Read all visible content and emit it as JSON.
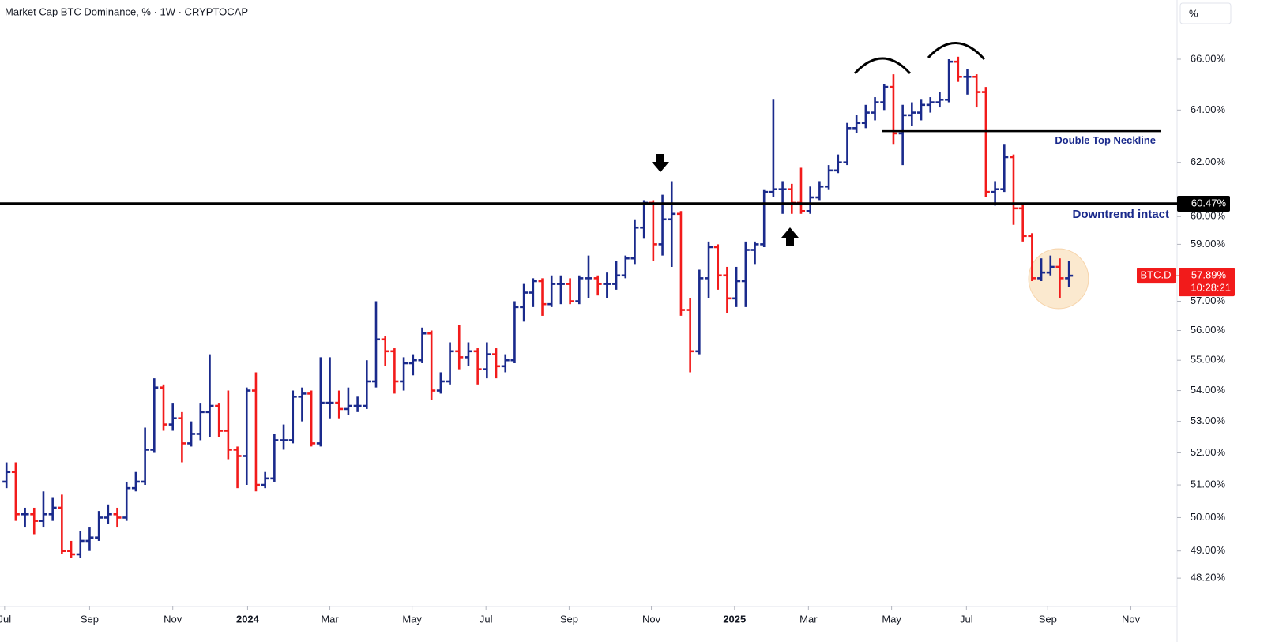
{
  "chart_data": {
    "type": "ohlc",
    "title": "Market Cap BTC Dominance, % · 1W · CRYPTOCAP",
    "axis_unit": "%",
    "log": true,
    "up_color": "#1a2a8c",
    "down_color": "#f21b1b",
    "xlim": [
      -0.7,
      126.7
    ],
    "xticks": [
      {
        "value": -0.2,
        "label": "Jul"
      },
      {
        "value": 9.0,
        "label": "Sep"
      },
      {
        "value": 18.0,
        "label": "Nov"
      },
      {
        "value": 26.1,
        "label": "2024"
      },
      {
        "value": 35.0,
        "label": "Mar"
      },
      {
        "value": 43.9,
        "label": "May"
      },
      {
        "value": 51.9,
        "label": "Jul"
      },
      {
        "value": 60.9,
        "label": "Sep"
      },
      {
        "value": 69.8,
        "label": "Nov"
      },
      {
        "value": 78.8,
        "label": "2025"
      },
      {
        "value": 86.8,
        "label": "Mar"
      },
      {
        "value": 95.8,
        "label": "May"
      },
      {
        "value": 103.9,
        "label": "Jul"
      },
      {
        "value": 112.7,
        "label": "Sep"
      },
      {
        "value": 121.7,
        "label": "Nov"
      }
    ],
    "ylim": [
      47.38,
      68.41
    ],
    "yticks": [
      {
        "value": 66,
        "label": "66.00%"
      },
      {
        "value": 64,
        "label": "64.00%"
      },
      {
        "value": 62,
        "label": "62.00%"
      },
      {
        "value": 60,
        "label": "60.00%"
      },
      {
        "value": 59,
        "label": "59.00%"
      },
      {
        "value": 57,
        "label": "57.00%"
      },
      {
        "value": 56,
        "label": "56.00%"
      },
      {
        "value": 55,
        "label": "55.00%"
      },
      {
        "value": 54,
        "label": "54.00%"
      },
      {
        "value": 53,
        "label": "53.00%"
      },
      {
        "value": 52,
        "label": "52.00%"
      },
      {
        "value": 51,
        "label": "51.00%"
      },
      {
        "value": 50,
        "label": "50.00%"
      },
      {
        "value": 49,
        "label": "49.00%"
      },
      {
        "value": 48.2,
        "label": "48.20%"
      }
    ],
    "open": [
      51.1,
      51.4,
      50.1,
      50.1,
      49.9,
      50.1,
      50.3,
      49.0,
      48.9,
      49.3,
      49.4,
      50.0,
      50.1,
      50.0,
      50.9,
      51.1,
      52.1,
      54.1,
      52.9,
      53.1,
      52.3,
      52.6,
      53.3,
      53.5,
      52.7,
      52.1,
      51.9,
      54.0,
      51.0,
      51.2,
      52.4,
      52.4,
      53.8,
      53.9,
      52.3,
      53.6,
      53.6,
      53.4,
      53.5,
      53.5,
      54.3,
      55.7,
      55.3,
      54.3,
      54.9,
      55.0,
      55.9,
      54.0,
      54.3,
      55.3,
      55.1,
      55.3,
      54.7,
      55.2,
      54.8,
      55.0,
      56.8,
      57.3,
      57.7,
      56.9,
      57.6,
      57.6,
      57.0,
      57.8,
      57.8,
      57.6,
      57.6,
      57.9,
      58.5,
      59.6,
      60.5,
      59.0,
      59.9,
      60.1,
      56.7,
      55.3,
      57.8,
      58.9,
      57.9,
      57.1,
      57.7,
      58.8,
      59.0,
      60.9,
      61.0,
      61.0,
      60.5,
      60.2,
      60.7,
      61.1,
      61.7,
      62.0,
      63.3,
      63.5,
      63.9,
      64.3,
      64.9,
      63.1,
      63.8,
      63.9,
      64.2,
      64.3,
      64.4,
      65.9,
      65.3,
      65.3,
      64.7,
      60.9,
      61.0,
      62.2,
      60.3,
      59.3,
      57.8,
      58.0,
      58.2,
      57.8
    ],
    "high": [
      51.7,
      51.7,
      50.3,
      50.3,
      50.8,
      50.6,
      50.7,
      49.3,
      49.6,
      49.7,
      50.2,
      50.4,
      50.3,
      51.1,
      51.4,
      52.8,
      54.4,
      54.2,
      53.6,
      53.3,
      53.0,
      53.6,
      55.2,
      53.6,
      54.0,
      52.2,
      54.1,
      54.6,
      51.4,
      52.6,
      52.9,
      54.0,
      54.1,
      54.0,
      55.1,
      55.1,
      54.0,
      54.1,
      53.8,
      55.0,
      57.0,
      55.8,
      55.4,
      55.1,
      55.2,
      56.1,
      56.0,
      54.6,
      55.6,
      56.2,
      55.6,
      55.4,
      55.6,
      55.4,
      55.2,
      57.0,
      57.6,
      57.8,
      57.8,
      57.9,
      57.9,
      57.8,
      57.9,
      58.6,
      57.9,
      58.0,
      58.4,
      58.6,
      59.9,
      60.6,
      60.6,
      60.8,
      61.3,
      60.2,
      57.1,
      58.1,
      59.1,
      59.0,
      58.2,
      58.2,
      59.1,
      59.1,
      61.0,
      64.4,
      61.3,
      61.2,
      61.8,
      61.1,
      61.3,
      61.9,
      62.3,
      63.5,
      63.8,
      64.2,
      64.5,
      65.0,
      65.4,
      64.2,
      64.3,
      64.4,
      64.5,
      64.7,
      66.0,
      66.1,
      65.6,
      65.4,
      64.9,
      61.3,
      62.7,
      62.3,
      60.5,
      59.4,
      58.5,
      58.6,
      58.5,
      58.4
    ],
    "low": [
      50.9,
      49.9,
      49.7,
      49.5,
      49.7,
      49.9,
      48.9,
      48.8,
      48.8,
      49.0,
      49.3,
      49.8,
      49.7,
      49.9,
      50.8,
      51.0,
      52.0,
      52.7,
      52.7,
      51.7,
      52.2,
      52.4,
      52.5,
      52.5,
      51.8,
      50.9,
      51.0,
      50.8,
      50.9,
      51.1,
      52.1,
      52.3,
      53.0,
      52.2,
      52.2,
      53.1,
      53.1,
      53.2,
      53.3,
      53.4,
      54.1,
      54.8,
      53.9,
      54.0,
      54.5,
      54.9,
      53.7,
      53.9,
      54.2,
      54.7,
      54.8,
      54.2,
      54.4,
      54.4,
      54.6,
      54.9,
      56.3,
      56.8,
      56.5,
      56.8,
      56.9,
      56.9,
      56.9,
      57.1,
      57.2,
      57.1,
      57.4,
      57.8,
      58.3,
      59.2,
      58.4,
      58.6,
      58.2,
      56.5,
      54.6,
      55.2,
      57.1,
      57.4,
      56.6,
      56.8,
      56.8,
      58.3,
      58.9,
      60.7,
      60.1,
      60.1,
      60.1,
      60.1,
      60.6,
      61.0,
      61.6,
      61.9,
      63.1,
      63.3,
      63.6,
      64.0,
      62.7,
      61.9,
      63.4,
      63.6,
      63.9,
      64.1,
      64.3,
      65.1,
      64.6,
      64.1,
      60.7,
      60.4,
      60.9,
      59.7,
      59.1,
      57.7,
      57.7,
      57.9,
      57.1,
      57.5
    ],
    "close": [
      51.4,
      50.1,
      50.1,
      49.9,
      50.1,
      50.3,
      49.0,
      48.9,
      49.3,
      49.4,
      50.0,
      50.1,
      50.0,
      50.9,
      51.1,
      52.1,
      54.1,
      52.9,
      53.1,
      52.3,
      52.6,
      53.3,
      53.5,
      52.7,
      52.1,
      51.9,
      54.0,
      51.0,
      51.2,
      52.4,
      52.4,
      53.8,
      53.9,
      52.3,
      53.6,
      53.6,
      53.4,
      53.5,
      53.5,
      54.3,
      55.7,
      55.3,
      54.3,
      54.9,
      55.0,
      55.9,
      54.0,
      54.3,
      55.3,
      55.1,
      55.3,
      54.7,
      55.2,
      54.8,
      55.0,
      56.8,
      57.3,
      57.7,
      56.9,
      57.6,
      57.6,
      57.0,
      57.8,
      57.8,
      57.6,
      57.6,
      57.9,
      58.5,
      59.6,
      60.5,
      59.0,
      59.9,
      60.1,
      56.7,
      55.3,
      57.8,
      58.9,
      57.9,
      57.1,
      57.7,
      58.8,
      59.0,
      60.9,
      61.0,
      61.0,
      60.5,
      60.2,
      60.7,
      61.1,
      61.7,
      62.0,
      63.3,
      63.5,
      63.9,
      64.3,
      64.9,
      63.1,
      63.8,
      63.9,
      64.2,
      64.3,
      64.4,
      65.9,
      65.3,
      65.3,
      64.7,
      60.9,
      61.0,
      62.2,
      60.3,
      59.3,
      57.8,
      58.0,
      58.2,
      57.8,
      57.89
    ],
    "level": {
      "value": 60.47,
      "label": "60.47%",
      "color": "#000000"
    },
    "neckline": {
      "value": 63.2,
      "label": "Double Top Neckline"
    },
    "annotation": "Downtrend intact",
    "last_price": {
      "symbol": "BTC.D",
      "value": 57.89,
      "label": "57.89%",
      "countdown": "10:28:21"
    }
  }
}
